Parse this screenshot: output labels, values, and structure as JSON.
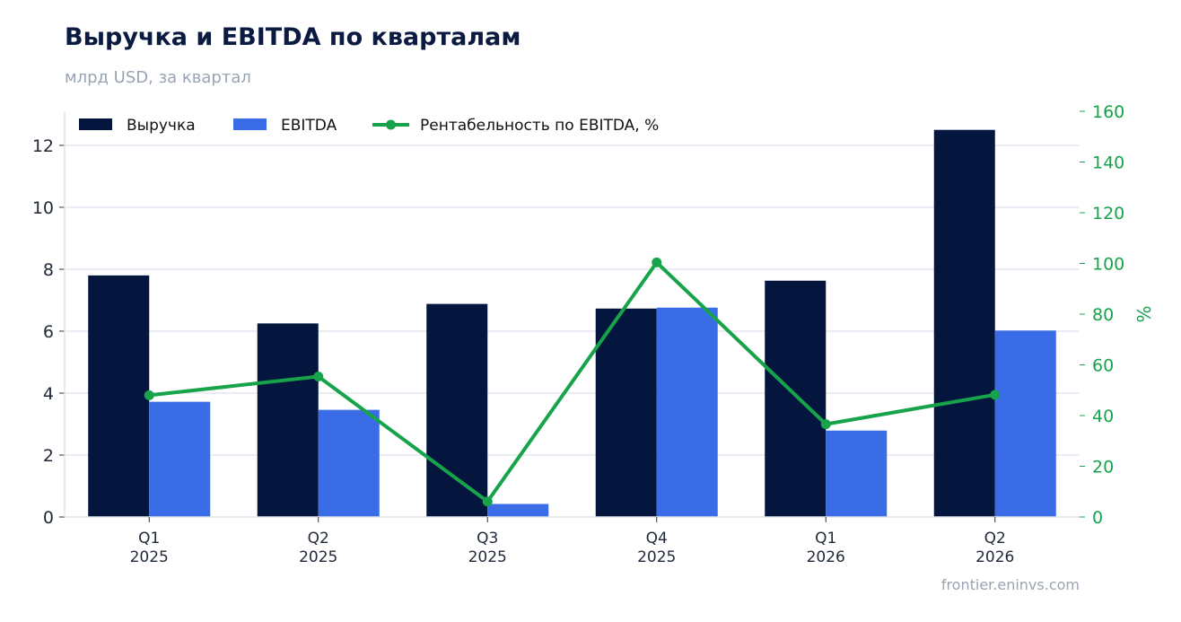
{
  "title": "Выручка и EBITDA по кварталам",
  "subtitle": "млрд USD, за квартал",
  "source": "frontier.eninvs.com",
  "colors": {
    "revenue": "#04153e",
    "ebitda": "#3a6ce8",
    "margin": "#16a34a",
    "grid": "#e3e7f0",
    "axis_text": "#1f2937"
  },
  "chart_data": {
    "type": "bar",
    "categories": [
      [
        "Q1",
        "2025"
      ],
      [
        "Q2",
        "2025"
      ],
      [
        "Q3",
        "2025"
      ],
      [
        "Q4",
        "2025"
      ],
      [
        "Q1",
        "2026"
      ],
      [
        "Q2",
        "2026"
      ]
    ],
    "series": [
      {
        "name": "Выручка",
        "type": "bar",
        "axis": "left",
        "values": [
          7.8,
          6.25,
          6.88,
          6.73,
          7.63,
          12.5
        ]
      },
      {
        "name": "EBITDA",
        "type": "bar",
        "axis": "left",
        "values": [
          3.72,
          3.46,
          0.42,
          6.76,
          2.79,
          6.02
        ]
      },
      {
        "name": "Рентабельность по EBITDA, %",
        "type": "line",
        "axis": "right",
        "values": [
          48,
          55.4,
          6.1,
          100.4,
          36.6,
          48.2
        ]
      }
    ],
    "ylim": [
      0,
      13.1
    ],
    "yticks": [
      0,
      2,
      4,
      6,
      8,
      10,
      12
    ],
    "y2lim": [
      0,
      160
    ],
    "y2ticks": [
      0,
      20,
      40,
      60,
      80,
      100,
      120,
      140,
      160
    ],
    "y2label": "%",
    "grid": true,
    "legend": "top-left"
  }
}
